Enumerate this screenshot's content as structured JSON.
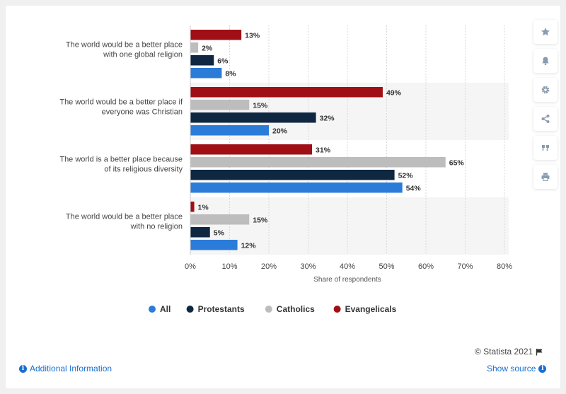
{
  "chart_data": {
    "type": "bar",
    "orientation": "horizontal",
    "categories": [
      "The world would be a better place with one global religion",
      "The world would be a better place if everyone was Christian",
      "The world is a better place because of its religious diversity",
      "The world would be a better place with no religion"
    ],
    "series": [
      {
        "name": "Evangelicals",
        "color": "#a10f16",
        "values": [
          13,
          49,
          31,
          1
        ]
      },
      {
        "name": "Catholics",
        "color": "#bdbdbd",
        "values": [
          2,
          15,
          65,
          15
        ]
      },
      {
        "name": "Protestants",
        "color": "#0f2741",
        "values": [
          6,
          32,
          52,
          5
        ]
      },
      {
        "name": "All",
        "color": "#2b7cd9",
        "values": [
          8,
          20,
          54,
          12
        ]
      }
    ],
    "legend_order": [
      "All",
      "Protestants",
      "Catholics",
      "Evangelicals"
    ],
    "value_suffix": "%",
    "xlim": [
      0,
      80
    ],
    "xticks": [
      "0%",
      "10%",
      "20%",
      "30%",
      "40%",
      "50%",
      "60%",
      "70%",
      "80%"
    ],
    "xlabel": "Share of respondents",
    "legend_position": "bottom",
    "grid": true
  },
  "footer": {
    "credit": "© Statista 2021",
    "additional_info": "Additional Information",
    "show_source": "Show source"
  },
  "toolbar": {
    "icons": [
      "star-icon",
      "bell-icon",
      "gear-icon",
      "share-icon",
      "quote-icon",
      "print-icon"
    ]
  }
}
